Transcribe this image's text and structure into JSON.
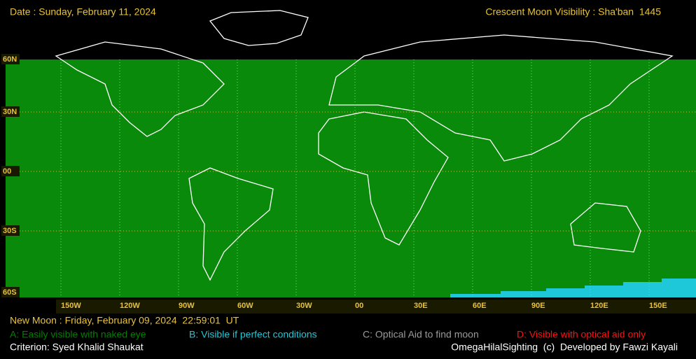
{
  "header": {
    "date": "Date : Sunday, February 11, 2024",
    "title": "Crescent Moon Visibility : Sha'ban  1445"
  },
  "map": {
    "lat_labels": [
      "60N",
      "30N",
      "00",
      "30S",
      "60S"
    ],
    "lon_labels": [
      "150W",
      "120W",
      "90W",
      "60W",
      "30W",
      "00",
      "30E",
      "60E",
      "90E",
      "120E",
      "150E"
    ]
  },
  "footer": {
    "new_moon": "New Moon : Friday, February 09, 2024  22:59:01  UT",
    "legend": [
      {
        "label": "A: Easily visible with naked eye",
        "color": "#008000"
      },
      {
        "label": "B: Visible if perfect conditions",
        "color": "#1ec8d8"
      },
      {
        "label": "C: Optical Aid to find moon",
        "color": "#9a9a9a"
      },
      {
        "label": "D: Visible with optical aid only",
        "color": "#ff1010"
      }
    ],
    "criterion": "Criterion: Syed Khalid Shaukat",
    "credit": "OmegaHilalSighting  (c)  Developed by Fawzi Kayali"
  }
}
